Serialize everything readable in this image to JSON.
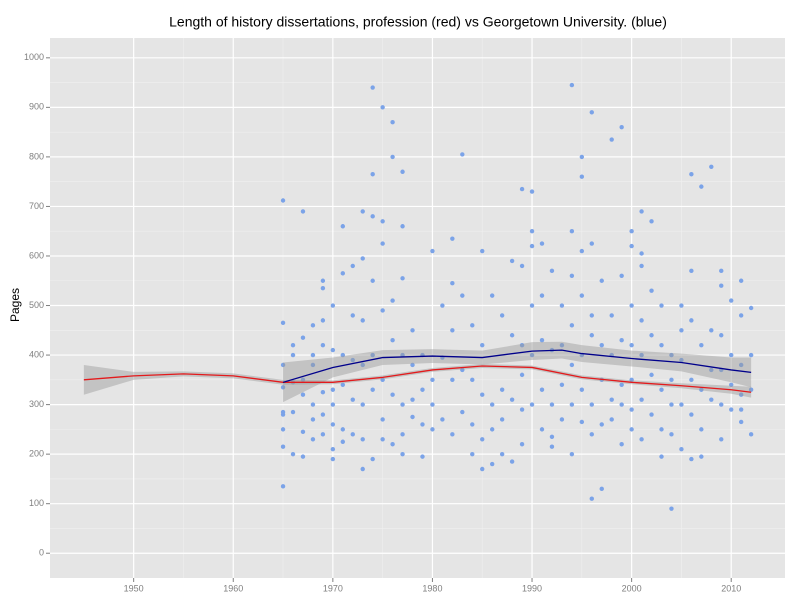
{
  "chart_data": {
    "type": "scatter",
    "title": "Length of history dissertations, profession (red) vs Georgetown University. (blue)",
    "ylabel": "Pages",
    "xlim": [
      1941.6,
      2015.4
    ],
    "ylim": [
      -50,
      1040
    ],
    "xticks": [
      1950,
      1960,
      1970,
      1980,
      1990,
      2000,
      2010
    ],
    "yticks": [
      0,
      100,
      200,
      300,
      400,
      500,
      600,
      700,
      800,
      900,
      1000
    ],
    "grid": true,
    "points": {
      "color": "#7ba3e8",
      "x": [
        1965,
        1965,
        1965,
        1965,
        1965,
        1965,
        1965,
        1965,
        1965,
        1966,
        1966,
        1966,
        1966,
        1966,
        1967,
        1967,
        1967,
        1967,
        1967,
        1967,
        1968,
        1968,
        1968,
        1968,
        1968,
        1968,
        1969,
        1969,
        1969,
        1969,
        1969,
        1969,
        1969,
        1970,
        1970,
        1970,
        1970,
        1970,
        1970,
        1970,
        1971,
        1971,
        1971,
        1971,
        1971,
        1971,
        1972,
        1972,
        1972,
        1972,
        1972,
        1973,
        1973,
        1973,
        1973,
        1973,
        1973,
        1973,
        1974,
        1974,
        1974,
        1974,
        1974,
        1974,
        1974,
        1975,
        1975,
        1975,
        1975,
        1975,
        1975,
        1975,
        1976,
        1976,
        1976,
        1976,
        1976,
        1976,
        1977,
        1977,
        1977,
        1977,
        1977,
        1977,
        1977,
        1978,
        1978,
        1978,
        1978,
        1979,
        1979,
        1979,
        1979,
        1980,
        1980,
        1980,
        1980,
        1981,
        1981,
        1981,
        1982,
        1982,
        1982,
        1982,
        1982,
        1983,
        1983,
        1983,
        1983,
        1984,
        1984,
        1984,
        1984,
        1985,
        1985,
        1985,
        1985,
        1985,
        1986,
        1986,
        1986,
        1986,
        1987,
        1987,
        1987,
        1987,
        1988,
        1988,
        1988,
        1988,
        1989,
        1989,
        1989,
        1989,
        1989,
        1989,
        1990,
        1990,
        1990,
        1990,
        1990,
        1990,
        1991,
        1991,
        1991,
        1991,
        1991,
        1992,
        1992,
        1992,
        1992,
        1992,
        1993,
        1993,
        1993,
        1993,
        1994,
        1994,
        1994,
        1994,
        1994,
        1994,
        1994,
        1995,
        1995,
        1995,
        1995,
        1995,
        1995,
        1995,
        1996,
        1996,
        1996,
        1996,
        1996,
        1996,
        1996,
        1997,
        1997,
        1997,
        1997,
        1997,
        1998,
        1998,
        1998,
        1998,
        1998,
        1999,
        1999,
        1999,
        1999,
        1999,
        1999,
        2000,
        2000,
        2000,
        2000,
        2000,
        2000,
        2000,
        2001,
        2001,
        2001,
        2001,
        2001,
        2001,
        2001,
        2002,
        2002,
        2002,
        2002,
        2002,
        2003,
        2003,
        2003,
        2003,
        2003,
        2004,
        2004,
        2004,
        2004,
        2004,
        2005,
        2005,
        2005,
        2005,
        2005,
        2006,
        2006,
        2006,
        2006,
        2006,
        2006,
        2007,
        2007,
        2007,
        2007,
        2007,
        2008,
        2008,
        2008,
        2008,
        2009,
        2009,
        2009,
        2009,
        2009,
        2009,
        2010,
        2010,
        2010,
        2010,
        2011,
        2011,
        2011,
        2011,
        2011,
        2011,
        2012,
        2012,
        2012,
        2012
      ],
      "y": [
        712,
        465,
        285,
        280,
        215,
        135,
        335,
        250,
        380,
        400,
        345,
        200,
        285,
        420,
        690,
        435,
        245,
        195,
        350,
        320,
        460,
        400,
        300,
        270,
        230,
        380,
        550,
        470,
        535,
        420,
        280,
        240,
        325,
        500,
        410,
        330,
        300,
        210,
        190,
        260,
        565,
        660,
        400,
        340,
        250,
        225,
        580,
        480,
        390,
        310,
        240,
        595,
        690,
        470,
        380,
        300,
        170,
        230,
        940,
        765,
        680,
        550,
        400,
        330,
        190,
        900,
        625,
        670,
        490,
        350,
        270,
        230,
        800,
        870,
        510,
        430,
        320,
        220,
        770,
        660,
        555,
        400,
        300,
        240,
        200,
        450,
        380,
        310,
        275,
        400,
        330,
        260,
        195,
        610,
        350,
        300,
        250,
        500,
        395,
        270,
        635,
        545,
        450,
        350,
        240,
        805,
        520,
        370,
        285,
        460,
        350,
        260,
        200,
        610,
        420,
        320,
        230,
        170,
        520,
        300,
        250,
        180,
        480,
        330,
        270,
        200,
        590,
        440,
        310,
        185,
        735,
        580,
        420,
        360,
        290,
        220,
        730,
        650,
        620,
        500,
        400,
        300,
        625,
        520,
        430,
        330,
        250,
        570,
        410,
        300,
        215,
        235,
        500,
        420,
        340,
        270,
        945,
        650,
        560,
        460,
        380,
        300,
        200,
        760,
        800,
        610,
        520,
        400,
        330,
        265,
        890,
        625,
        480,
        440,
        300,
        110,
        240,
        130,
        550,
        420,
        350,
        260,
        835,
        480,
        400,
        310,
        270,
        860,
        560,
        430,
        340,
        300,
        220,
        620,
        650,
        500,
        420,
        350,
        290,
        250,
        605,
        690,
        580,
        470,
        400,
        310,
        230,
        670,
        530,
        440,
        360,
        280,
        500,
        420,
        330,
        250,
        195,
        90,
        400,
        350,
        300,
        240,
        500,
        450,
        390,
        300,
        210,
        765,
        570,
        470,
        350,
        280,
        190,
        740,
        420,
        330,
        250,
        195,
        780,
        450,
        370,
        310,
        570,
        540,
        440,
        370,
        300,
        230,
        510,
        400,
        340,
        290,
        550,
        480,
        380,
        320,
        290,
        265,
        495,
        400,
        330,
        240
      ]
    },
    "smooths": [
      {
        "color": "#e31a1c",
        "x": [
          1945,
          1950,
          1955,
          1960,
          1965,
          1970,
          1975,
          1980,
          1985,
          1990,
          1995,
          2000,
          2005,
          2010,
          2012
        ],
        "values": [
          350,
          358,
          362,
          358,
          345,
          345,
          355,
          370,
          378,
          375,
          355,
          345,
          338,
          330,
          325
        ],
        "lower": [
          320,
          350,
          357,
          353,
          340,
          341,
          351,
          366,
          374,
          371,
          351,
          341,
          333,
          322,
          314
        ],
        "upper": [
          380,
          366,
          367,
          363,
          350,
          349,
          359,
          374,
          382,
          379,
          359,
          349,
          343,
          338,
          336
        ]
      },
      {
        "color": "#00008b",
        "x": [
          1965,
          1970,
          1975,
          1980,
          1985,
          1990,
          1993,
          1995,
          2000,
          2005,
          2010,
          2012
        ],
        "values": [
          345,
          375,
          395,
          398,
          395,
          408,
          410,
          403,
          393,
          385,
          370,
          365
        ],
        "lower": [
          305,
          355,
          380,
          384,
          381,
          390,
          393,
          386,
          377,
          367,
          345,
          335
        ],
        "upper": [
          385,
          395,
          410,
          412,
          409,
          426,
          427,
          420,
          409,
          403,
          395,
          395
        ]
      }
    ],
    "band_color": "#9a9a9a"
  }
}
